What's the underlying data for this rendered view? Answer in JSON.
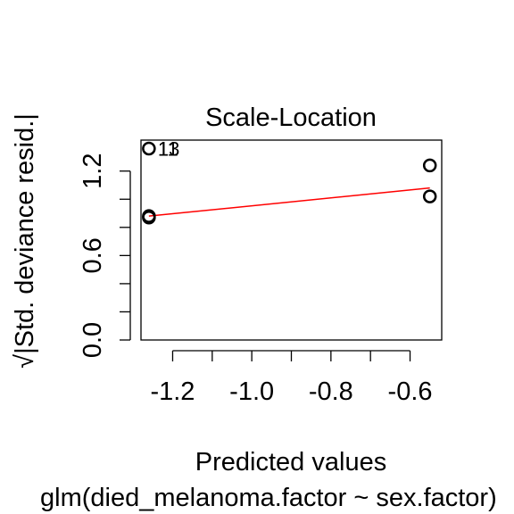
{
  "chart_data": {
    "type": "scatter",
    "title": "Scale-Location",
    "xlabel": "Predicted values",
    "ylabel": "√|Std. deviance resid.|",
    "subtitle": "glm(died_melanoma.factor ~ sex.factor)",
    "xlim": [
      -1.28,
      -0.52
    ],
    "ylim": [
      0.0,
      1.42
    ],
    "x_ticks": [
      -1.2,
      -1.1,
      -1.0,
      -0.9,
      -0.8,
      -0.7,
      -0.6
    ],
    "x_tick_labels": [
      {
        "value": -1.2,
        "label": "-1.2"
      },
      {
        "value": -1.0,
        "label": "-1.0"
      },
      {
        "value": -0.8,
        "label": "-0.8"
      },
      {
        "value": -0.6,
        "label": "-0.6"
      }
    ],
    "y_ticks": [
      0.0,
      0.2,
      0.4,
      0.6,
      0.8,
      1.0,
      1.2
    ],
    "y_tick_labels": [
      {
        "value": 0.0,
        "label": "0.0"
      },
      {
        "value": 0.6,
        "label": "0.6"
      },
      {
        "value": 1.2,
        "label": "1.2"
      }
    ],
    "points": [
      {
        "x": -1.26,
        "y": 1.36
      },
      {
        "x": -1.26,
        "y": 0.87
      },
      {
        "x": -1.26,
        "y": 0.88
      },
      {
        "x": -0.55,
        "y": 1.24
      },
      {
        "x": -0.55,
        "y": 1.02
      }
    ],
    "point_labels": [
      {
        "x": -1.26,
        "y": 1.36,
        "label": "13"
      },
      {
        "x": -1.26,
        "y": 1.36,
        "label": "11"
      }
    ],
    "smooth_line": {
      "x": [
        -1.26,
        -0.55
      ],
      "y": [
        0.88,
        1.08
      ],
      "color": "#ff0000"
    },
    "grid": false
  }
}
